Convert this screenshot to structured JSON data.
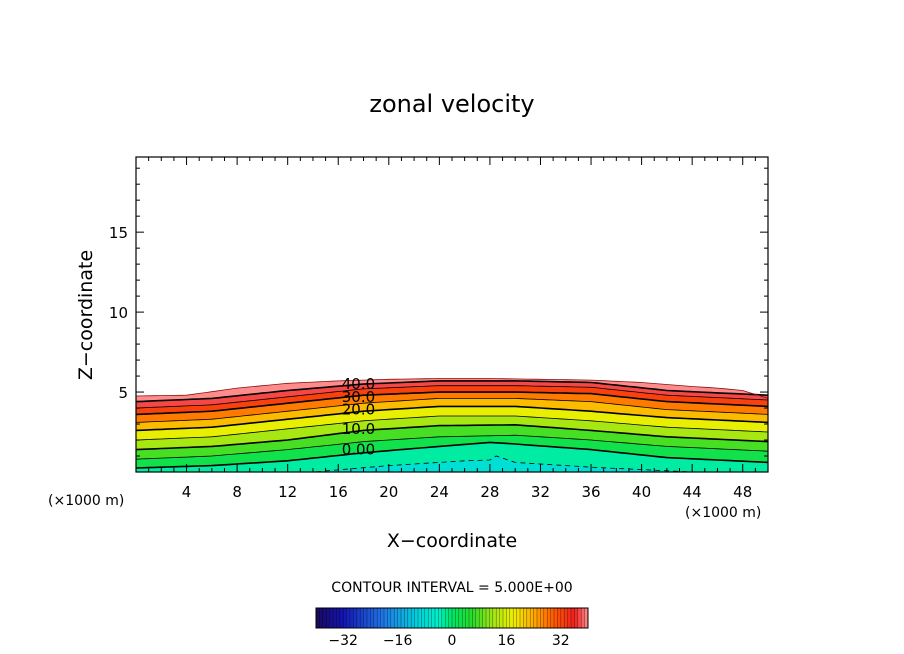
{
  "chart_data": {
    "type": "contour",
    "title": "zonal velocity",
    "xlabel": "X−coordinate",
    "ylabel": "Z−coordinate",
    "x_unit_left": "(×1000 m)",
    "x_unit_right": "(×1000 m)",
    "xlim": [
      0,
      50
    ],
    "ylim": [
      0,
      19.7
    ],
    "x_ticks": [
      {
        "value": 4,
        "label": "4"
      },
      {
        "value": 8,
        "label": "8"
      },
      {
        "value": 12,
        "label": "12"
      },
      {
        "value": 16,
        "label": "16"
      },
      {
        "value": 20,
        "label": "20"
      },
      {
        "value": 24,
        "label": "24"
      },
      {
        "value": 28,
        "label": "28"
      },
      {
        "value": 32,
        "label": "32"
      },
      {
        "value": 36,
        "label": "36"
      },
      {
        "value": 40,
        "label": "40"
      },
      {
        "value": 44,
        "label": "44"
      },
      {
        "value": 48,
        "label": "48"
      }
    ],
    "y_ticks": [
      {
        "value": 5,
        "label": "5"
      },
      {
        "value": 10,
        "label": "10"
      },
      {
        "value": 15,
        "label": "15"
      }
    ],
    "contour_interval_text": "CONTOUR INTERVAL = 5.000E+00",
    "contour_labels": [
      {
        "value": 40,
        "label": "40.0",
        "x": 17.6,
        "z": 5.5
      },
      {
        "value": 30,
        "label": "30.0",
        "x": 17.6,
        "z": 4.7
      },
      {
        "value": 20,
        "label": "20.0",
        "x": 17.6,
        "z": 3.9
      },
      {
        "value": 10,
        "label": "10.0",
        "x": 17.6,
        "z": 2.7
      },
      {
        "value": 0,
        "label": "0.00",
        "x": 17.6,
        "z": 1.4
      }
    ],
    "contour_levels": [
      {
        "value": -5,
        "x": [
          14,
          20,
          26,
          28,
          28.5,
          30,
          36,
          44
        ],
        "z": [
          0.0,
          0.4,
          0.7,
          0.75,
          1.0,
          0.6,
          0.3,
          0.0
        ]
      },
      {
        "value": 0,
        "x": [
          0,
          6,
          12,
          18,
          24,
          28,
          30,
          36,
          42,
          50
        ],
        "z": [
          0.25,
          0.4,
          0.7,
          1.2,
          1.6,
          1.85,
          1.75,
          1.4,
          0.9,
          0.6
        ]
      },
      {
        "value": 5,
        "x": [
          0,
          6,
          12,
          18,
          24,
          30,
          36,
          42,
          50
        ],
        "z": [
          0.8,
          1.0,
          1.4,
          1.9,
          2.2,
          2.3,
          2.0,
          1.6,
          1.3
        ]
      },
      {
        "value": 10,
        "x": [
          0,
          6,
          12,
          18,
          24,
          30,
          36,
          42,
          50
        ],
        "z": [
          1.4,
          1.6,
          2.0,
          2.6,
          2.9,
          2.95,
          2.6,
          2.2,
          1.9
        ]
      },
      {
        "value": 15,
        "x": [
          0,
          6,
          12,
          18,
          24,
          30,
          36,
          42,
          50
        ],
        "z": [
          2.0,
          2.2,
          2.7,
          3.2,
          3.5,
          3.5,
          3.2,
          2.8,
          2.5
        ]
      },
      {
        "value": 20,
        "x": [
          0,
          6,
          12,
          18,
          24,
          30,
          36,
          42,
          50
        ],
        "z": [
          2.6,
          2.8,
          3.3,
          3.8,
          4.1,
          4.1,
          3.8,
          3.4,
          3.1
        ]
      },
      {
        "value": 25,
        "x": [
          0,
          6,
          12,
          18,
          24,
          30,
          36,
          42,
          50
        ],
        "z": [
          3.1,
          3.3,
          3.8,
          4.3,
          4.6,
          4.6,
          4.4,
          3.9,
          3.6
        ]
      },
      {
        "value": 30,
        "x": [
          0,
          6,
          12,
          18,
          24,
          30,
          36,
          42,
          50
        ],
        "z": [
          3.6,
          3.8,
          4.3,
          4.8,
          5.0,
          5.0,
          4.9,
          4.4,
          4.1
        ]
      },
      {
        "value": 35,
        "x": [
          0,
          6,
          12,
          18,
          24,
          30,
          36,
          42,
          50
        ],
        "z": [
          4.0,
          4.2,
          4.7,
          5.2,
          5.4,
          5.4,
          5.3,
          4.8,
          4.5
        ]
      },
      {
        "value": 40,
        "x": [
          0,
          6,
          12,
          18,
          24,
          30,
          36,
          42,
          50
        ],
        "z": [
          4.4,
          4.6,
          5.1,
          5.5,
          5.7,
          5.7,
          5.6,
          5.1,
          4.8
        ]
      }
    ],
    "domain_top": {
      "x": [
        0,
        4,
        8,
        12,
        16,
        20,
        24,
        28,
        32,
        36,
        40,
        44,
        46,
        48,
        50
      ],
      "z": [
        4.75,
        4.8,
        5.25,
        5.55,
        5.7,
        5.8,
        5.85,
        5.85,
        5.8,
        5.75,
        5.6,
        5.35,
        5.25,
        5.1,
        4.6
      ]
    },
    "colorbar": {
      "range": [
        -40,
        40
      ],
      "ticks": [
        {
          "value": -32,
          "label": "−32"
        },
        {
          "value": -16,
          "label": "−16"
        },
        {
          "value": 0,
          "label": "0"
        },
        {
          "value": 16,
          "label": "16"
        },
        {
          "value": 32,
          "label": "32"
        }
      ]
    },
    "colormap": [
      {
        "v": -40,
        "c": "#1a0a5a"
      },
      {
        "v": -32,
        "c": "#1414b4"
      },
      {
        "v": -20,
        "c": "#1e78e6"
      },
      {
        "v": -10,
        "c": "#00d2dc"
      },
      {
        "v": -4,
        "c": "#00f0c8"
      },
      {
        "v": 0,
        "c": "#00e664"
      },
      {
        "v": 6,
        "c": "#28dc28"
      },
      {
        "v": 12,
        "c": "#a0e614"
      },
      {
        "v": 18,
        "c": "#f0f000"
      },
      {
        "v": 24,
        "c": "#ffaa00"
      },
      {
        "v": 30,
        "c": "#ff5a00"
      },
      {
        "v": 36,
        "c": "#f01e1e"
      },
      {
        "v": 40,
        "c": "#ff8c8c"
      }
    ],
    "axis_color": "#000000"
  }
}
